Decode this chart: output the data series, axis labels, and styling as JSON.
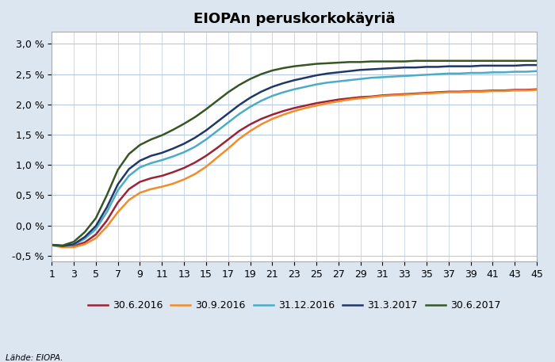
{
  "title": "EIOPAn peruskorkokäyriä",
  "source": "Lähde: EIOPA.",
  "x_ticks": [
    1,
    3,
    5,
    7,
    9,
    11,
    13,
    15,
    17,
    19,
    21,
    23,
    25,
    27,
    29,
    31,
    33,
    35,
    37,
    39,
    41,
    43,
    45
  ],
  "ylim": [
    -0.006,
    0.032
  ],
  "yticks": [
    -0.005,
    0.0,
    0.005,
    0.01,
    0.015,
    0.02,
    0.025,
    0.03
  ],
  "ytick_labels": [
    "-0,5 %",
    "0,0 %",
    "0,5 %",
    "1,0 %",
    "1,5 %",
    "2,0 %",
    "2,5 %",
    "3,0 %"
  ],
  "series": [
    {
      "label": "30.6.2016",
      "color": "#9B2335",
      "values": [
        -0.0032,
        -0.0035,
        -0.0034,
        -0.0028,
        -0.0015,
        0.0008,
        0.0038,
        0.006,
        0.0072,
        0.0078,
        0.0082,
        0.0088,
        0.0095,
        0.0104,
        0.0115,
        0.0128,
        0.0142,
        0.0156,
        0.0167,
        0.0176,
        0.0183,
        0.0189,
        0.0194,
        0.0198,
        0.0202,
        0.0205,
        0.0208,
        0.021,
        0.0212,
        0.0213,
        0.0215,
        0.0216,
        0.0217,
        0.0218,
        0.0219,
        0.022,
        0.0221,
        0.0221,
        0.0222,
        0.0222,
        0.0223,
        0.0223,
        0.0224,
        0.0224,
        0.0225
      ]
    },
    {
      "label": "30.9.2016",
      "color": "#F28C28",
      "values": [
        -0.0033,
        -0.0036,
        -0.0036,
        -0.0031,
        -0.0021,
        -0.0002,
        0.0022,
        0.0042,
        0.0054,
        0.006,
        0.0064,
        0.0069,
        0.0076,
        0.0085,
        0.0097,
        0.0112,
        0.0127,
        0.0143,
        0.0156,
        0.0167,
        0.0176,
        0.0183,
        0.0189,
        0.0194,
        0.0198,
        0.0202,
        0.0205,
        0.0208,
        0.021,
        0.0212,
        0.0214,
        0.0215,
        0.0216,
        0.0217,
        0.0218,
        0.0219,
        0.022,
        0.022,
        0.0221,
        0.0221,
        0.0222,
        0.0222,
        0.0223,
        0.0223,
        0.0224
      ]
    },
    {
      "label": "31.12.2016",
      "color": "#4BACC6",
      "values": [
        -0.0032,
        -0.0034,
        -0.0032,
        -0.0022,
        -0.0006,
        0.0022,
        0.0058,
        0.0082,
        0.0096,
        0.0103,
        0.0108,
        0.0114,
        0.0121,
        0.013,
        0.0142,
        0.0156,
        0.017,
        0.0184,
        0.0196,
        0.0206,
        0.0214,
        0.022,
        0.0225,
        0.0229,
        0.0233,
        0.0236,
        0.0238,
        0.024,
        0.0242,
        0.0244,
        0.0245,
        0.0246,
        0.0247,
        0.0248,
        0.0249,
        0.025,
        0.0251,
        0.0251,
        0.0252,
        0.0252,
        0.0253,
        0.0253,
        0.0254,
        0.0254,
        0.0255
      ]
    },
    {
      "label": "31.3.2017",
      "color": "#1F3864",
      "values": [
        -0.0032,
        -0.0034,
        -0.0031,
        -0.0019,
        -0.0001,
        0.003,
        0.0068,
        0.0093,
        0.0107,
        0.0115,
        0.012,
        0.0127,
        0.0135,
        0.0145,
        0.0157,
        0.0171,
        0.0185,
        0.0199,
        0.0211,
        0.0221,
        0.0229,
        0.0235,
        0.024,
        0.0244,
        0.0248,
        0.0251,
        0.0253,
        0.0255,
        0.0257,
        0.0258,
        0.0259,
        0.026,
        0.0261,
        0.0261,
        0.0262,
        0.0262,
        0.0263,
        0.0263,
        0.0263,
        0.0264,
        0.0264,
        0.0264,
        0.0264,
        0.0265,
        0.0265
      ]
    },
    {
      "label": "30.6.2017",
      "color": "#375623",
      "values": [
        -0.0032,
        -0.0033,
        -0.0027,
        -0.0011,
        0.0012,
        0.005,
        0.0092,
        0.0118,
        0.0133,
        0.0142,
        0.0149,
        0.0158,
        0.0168,
        0.0179,
        0.0192,
        0.0206,
        0.022,
        0.0232,
        0.0242,
        0.025,
        0.0256,
        0.026,
        0.0263,
        0.0265,
        0.0267,
        0.0268,
        0.0269,
        0.027,
        0.027,
        0.0271,
        0.0271,
        0.0271,
        0.0271,
        0.0272,
        0.0272,
        0.0272,
        0.0272,
        0.0272,
        0.0272,
        0.0272,
        0.0272,
        0.0272,
        0.0272,
        0.0272,
        0.0272
      ]
    }
  ],
  "background_color": "#DCE6F1",
  "plot_bg_color": "#FFFFFF",
  "grid_color": "#B8C8E0",
  "title_fontsize": 13,
  "legend_fontsize": 9,
  "tick_fontsize": 9
}
